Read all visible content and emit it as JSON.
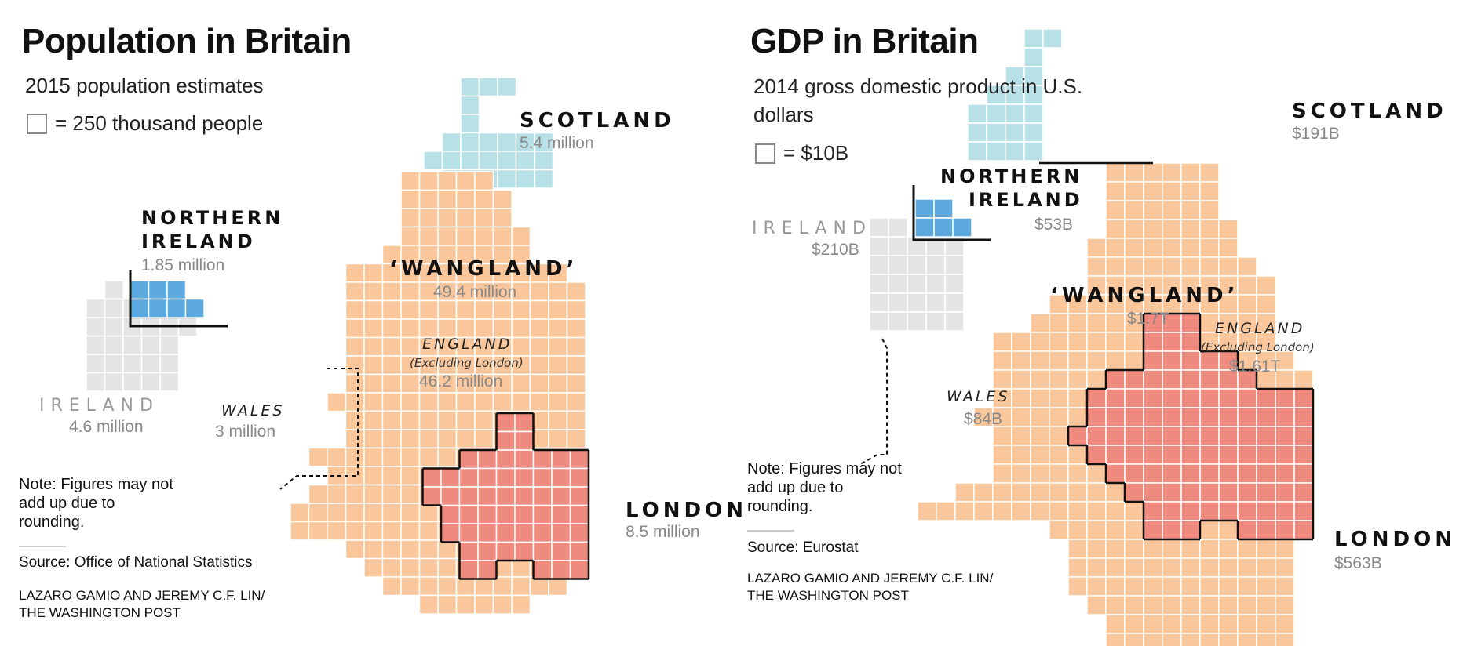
{
  "left": {
    "title": "Population in Britain",
    "subtitle": "2015 population estimates",
    "legend_text": "= 250 thousand people",
    "regions": {
      "scotland": {
        "name": "SCOTLAND",
        "value": "5.4 million"
      },
      "northern_ireland": {
        "name_line1": "NORTHERN",
        "name_line2": "IRELAND",
        "value": "1.85 million"
      },
      "wangland": {
        "name": "‘WANGLAND’",
        "value": "49.4 million"
      },
      "england": {
        "name": "ENGLAND",
        "sub": "(Excluding London)",
        "value": "46.2 million"
      },
      "wales": {
        "name": "WALES",
        "value": "3 million"
      },
      "ireland": {
        "name": "IRELAND",
        "value": "4.6 million"
      },
      "london": {
        "name": "LONDON",
        "value": "8.5 million"
      }
    },
    "note": "Note: Figures may not add up due to rounding.",
    "source": "Source: Office of National Statistics",
    "credit": "LAZARO GAMIO AND JEREMY C.F. LIN/ THE WASHINGTON POST"
  },
  "right": {
    "title": "GDP in Britain",
    "subtitle": "2014 gross domestic product in U.S. dollars",
    "legend_text": "= $10B",
    "regions": {
      "scotland": {
        "name": "SCOTLAND",
        "value": "$191B"
      },
      "northern_ireland": {
        "name_line1": "NORTHERN",
        "name_line2": "IRELAND",
        "value": "$53B"
      },
      "ireland": {
        "name": "IRELAND",
        "value": "$210B"
      },
      "wangland": {
        "name": "‘WANGLAND’",
        "value": "$1.7T"
      },
      "england": {
        "name": "ENGLAND",
        "sub": "(Excluding London)",
        "value": "$1.61T"
      },
      "wales": {
        "name": "WALES",
        "value": "$84B"
      },
      "london": {
        "name": "LONDON",
        "value": "$563B"
      }
    },
    "note": "Note: Figures may not add up due to rounding.",
    "source": "Source: Eurostat",
    "credit": "LAZARO GAMIO AND JEREMY C.F. LIN/ THE WASHINGTON POST"
  },
  "colors": {
    "scotland": "#b7e1e6",
    "england": "#f9c79b",
    "london": "#ef8a7f",
    "northern_ireland": "#5ba9de",
    "ireland": "#e4e4e4",
    "grid_line": "#ffffff",
    "outline": "#111111"
  }
}
